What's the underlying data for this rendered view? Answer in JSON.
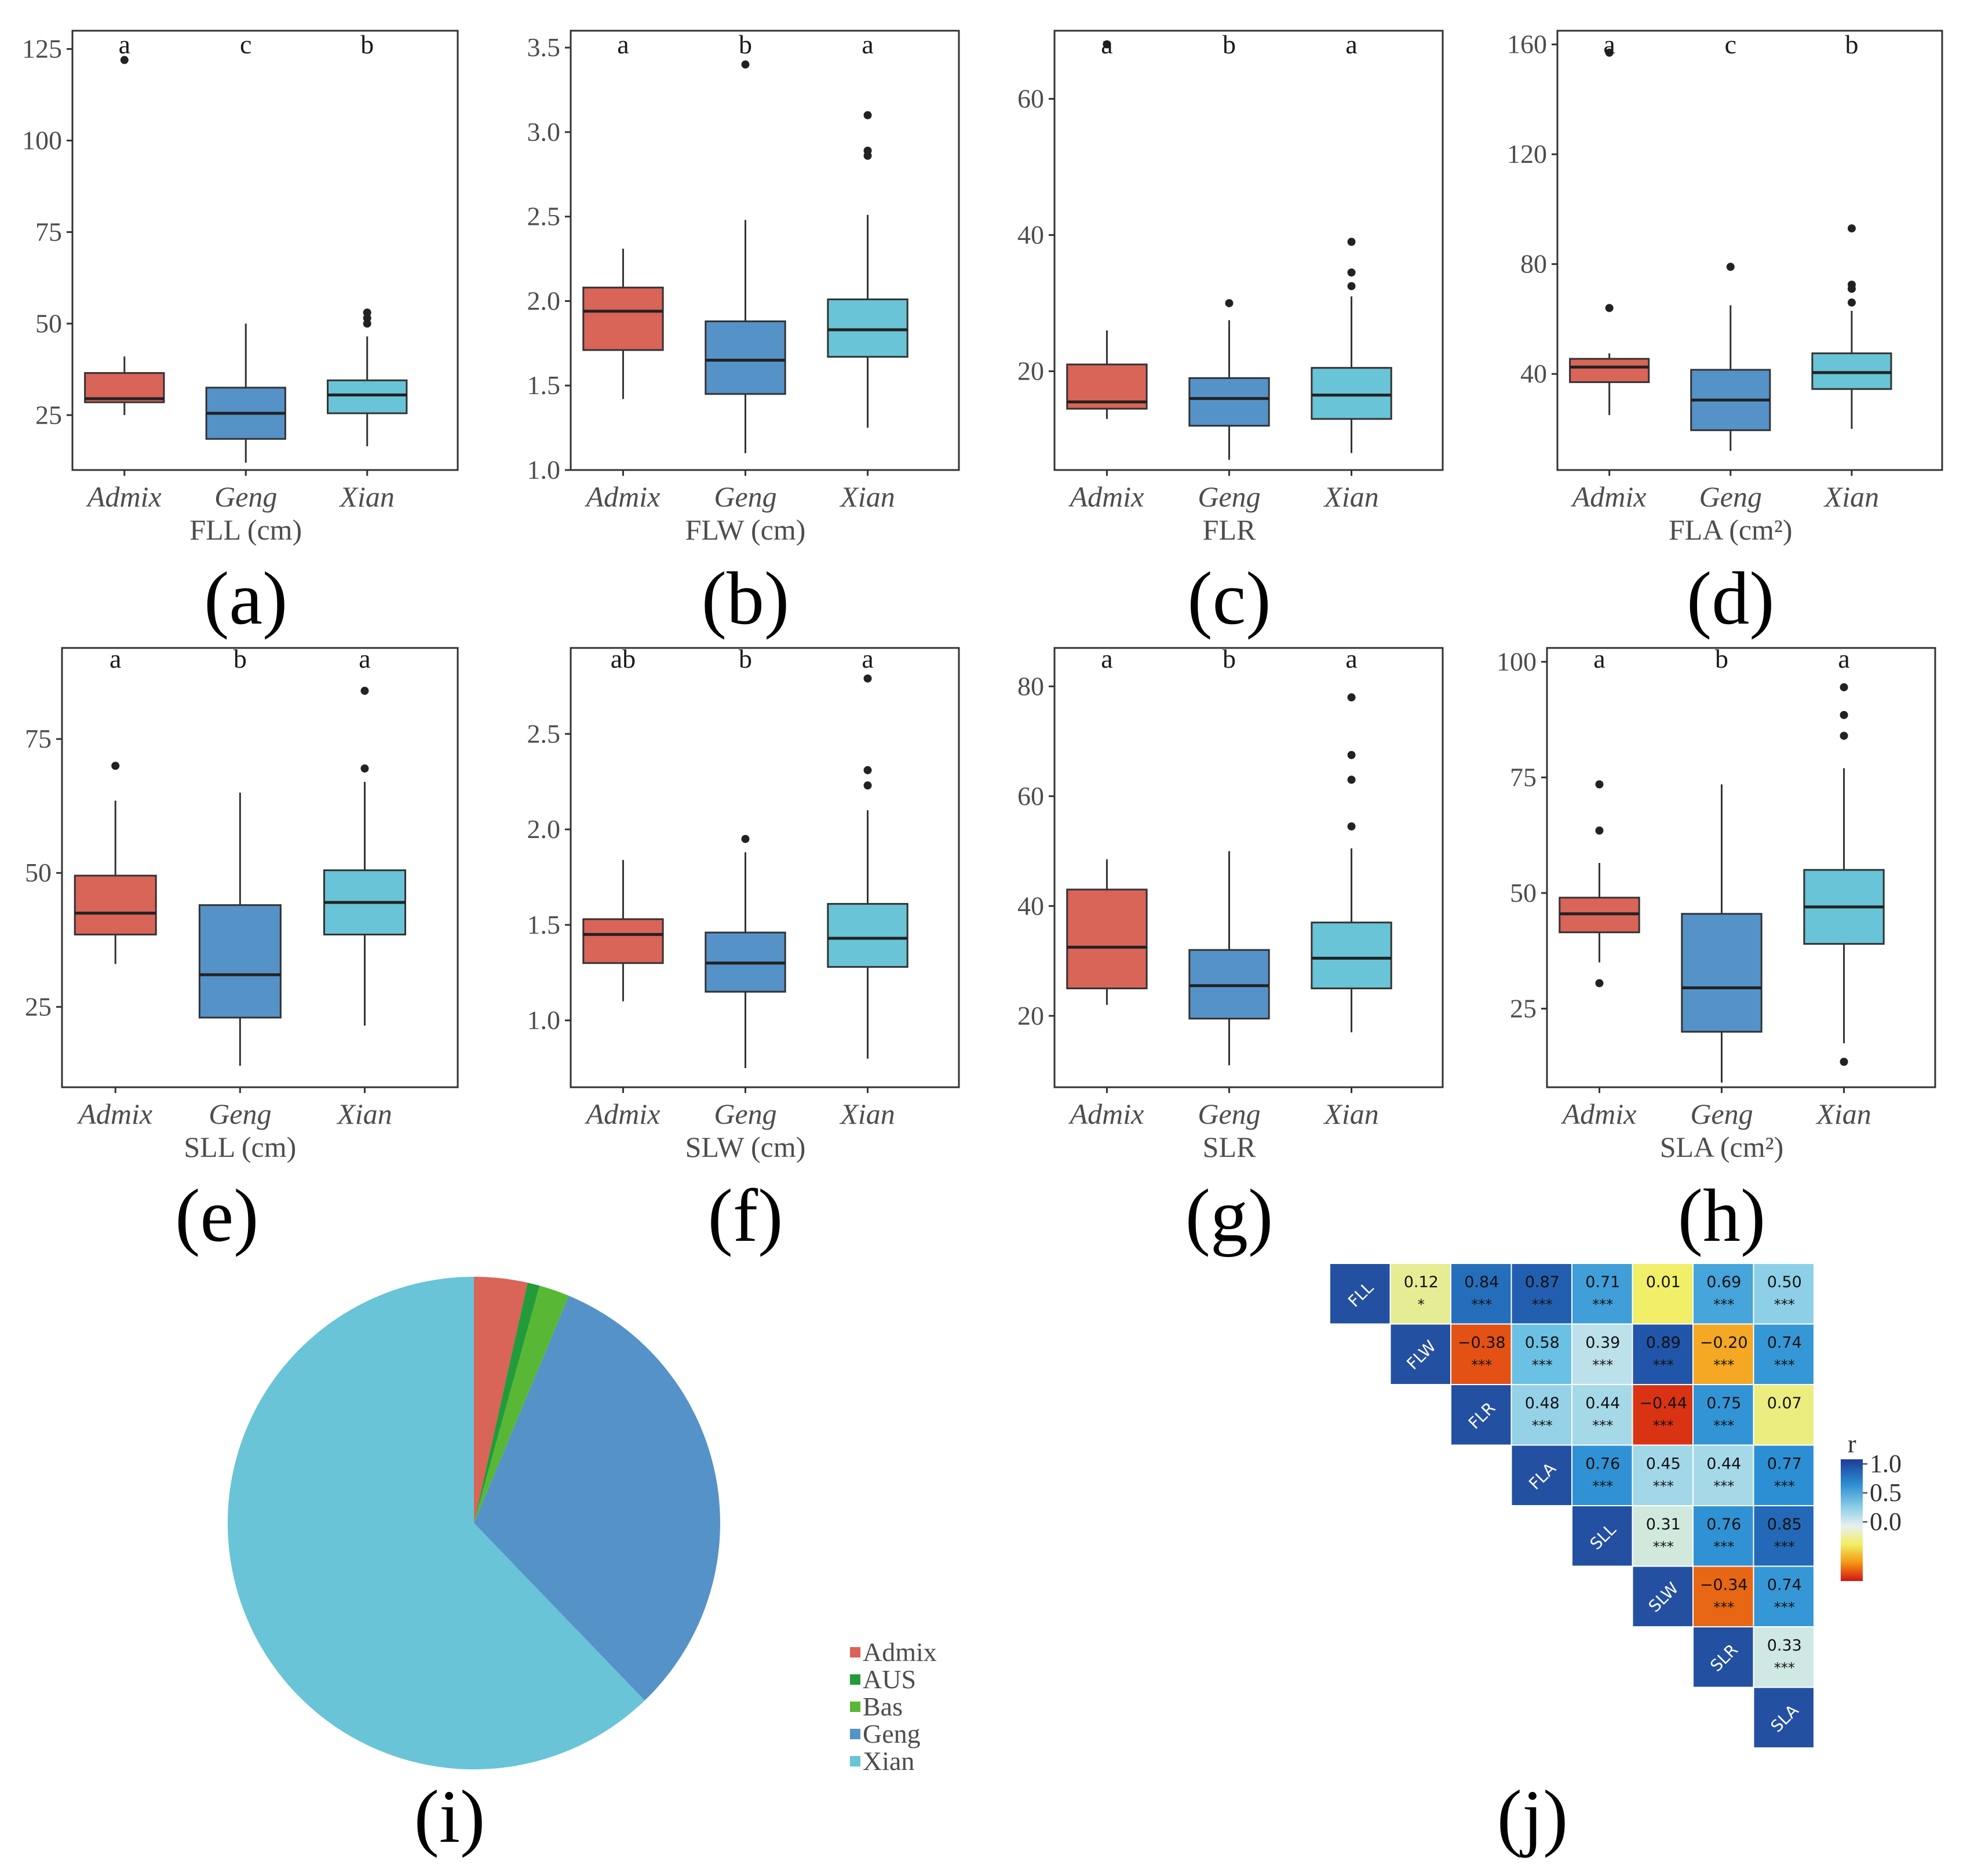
{
  "colors": {
    "Admix": "#d96458",
    "AUS": "#239b3a",
    "Bas": "#58b836",
    "Geng": "#5592c8",
    "Xian": "#68c4d6"
  },
  "chart_data": [
    {
      "type": "box",
      "panel": "(a)",
      "xlabel": "FLL (cm)",
      "categories": [
        "Admix",
        "Geng",
        "Xian"
      ],
      "yticks": [
        25,
        50,
        75,
        100,
        125
      ],
      "ylim": [
        10,
        130
      ],
      "letters": [
        "a",
        "c",
        "b"
      ],
      "boxes": [
        {
          "lo": 25,
          "q1": 28.5,
          "med": 29.5,
          "q3": 36.5,
          "hi": 41,
          "outliers": [
            122
          ]
        },
        {
          "lo": 12,
          "q1": 18.5,
          "med": 25.5,
          "q3": 32.5,
          "hi": 50,
          "outliers": []
        },
        {
          "lo": 16.5,
          "q1": 25.5,
          "med": 30.5,
          "q3": 34.5,
          "hi": 46.5,
          "outliers": [
            50,
            51.5,
            53
          ]
        }
      ]
    },
    {
      "type": "box",
      "panel": "(b)",
      "xlabel": "FLW (cm)",
      "categories": [
        "Admix",
        "Geng",
        "Xian"
      ],
      "yticks": [
        "1.0",
        "1.5",
        "2.0",
        "2.5",
        "3.0",
        "3.5"
      ],
      "ylim": [
        1.0,
        3.6
      ],
      "letters": [
        "a",
        "b",
        "a"
      ],
      "boxes": [
        {
          "lo": 1.42,
          "q1": 1.71,
          "med": 1.94,
          "q3": 2.08,
          "hi": 2.31,
          "outliers": []
        },
        {
          "lo": 1.1,
          "q1": 1.45,
          "med": 1.65,
          "q3": 1.88,
          "hi": 2.48,
          "outliers": [
            3.4
          ]
        },
        {
          "lo": 1.25,
          "q1": 1.67,
          "med": 1.83,
          "q3": 2.01,
          "hi": 2.51,
          "outliers": [
            2.86,
            2.89,
            3.1
          ]
        }
      ]
    },
    {
      "type": "box",
      "panel": "(c)",
      "xlabel": "FLR",
      "categories": [
        "Admix",
        "Geng",
        "Xian"
      ],
      "yticks": [
        20,
        40,
        60
      ],
      "ylim": [
        5.5,
        70
      ],
      "letters": [
        "a",
        "b",
        "a"
      ],
      "boxes": [
        {
          "lo": 13,
          "q1": 14.5,
          "med": 15.5,
          "q3": 21,
          "hi": 26,
          "outliers": [
            68
          ]
        },
        {
          "lo": 7,
          "q1": 12,
          "med": 16,
          "q3": 19,
          "hi": 27.5,
          "outliers": [
            30
          ]
        },
        {
          "lo": 8,
          "q1": 13,
          "med": 16.5,
          "q3": 20.5,
          "hi": 31,
          "outliers": [
            32.5,
            34.5,
            39
          ]
        }
      ]
    },
    {
      "type": "box",
      "panel": "(d)",
      "xlabel": "FLA (cm²)",
      "categories": [
        "Admix",
        "Geng",
        "Xian"
      ],
      "yticks": [
        40,
        80,
        120,
        160
      ],
      "ylim": [
        5,
        165
      ],
      "letters": [
        "a",
        "c",
        "b"
      ],
      "boxes": [
        {
          "lo": 25,
          "q1": 37,
          "med": 42.5,
          "q3": 45.5,
          "hi": 47.5,
          "outliers": [
            64,
            157
          ]
        },
        {
          "lo": 12,
          "q1": 19.5,
          "med": 30.5,
          "q3": 41.5,
          "hi": 65,
          "outliers": [
            79
          ]
        },
        {
          "lo": 20,
          "q1": 34.5,
          "med": 40.5,
          "q3": 47.5,
          "hi": 63,
          "outliers": [
            66,
            71,
            72.5,
            93
          ]
        }
      ]
    },
    {
      "type": "box",
      "panel": "(e)",
      "xlabel": "SLL (cm)",
      "categories": [
        "Admix",
        "Geng",
        "Xian"
      ],
      "yticks": [
        25,
        50,
        75
      ],
      "ylim": [
        10,
        92
      ],
      "letters": [
        "a",
        "b",
        "a"
      ],
      "boxes": [
        {
          "lo": 33,
          "q1": 38.5,
          "med": 42.5,
          "q3": 49.5,
          "hi": 63.5,
          "outliers": [
            70
          ]
        },
        {
          "lo": 14,
          "q1": 23,
          "med": 31,
          "q3": 44,
          "hi": 65,
          "outliers": []
        },
        {
          "lo": 21.5,
          "q1": 38.5,
          "med": 44.5,
          "q3": 50.5,
          "hi": 67,
          "outliers": [
            69.5,
            84
          ]
        }
      ]
    },
    {
      "type": "box",
      "panel": "(f)",
      "xlabel": "SLW (cm)",
      "categories": [
        "Admix",
        "Geng",
        "Xian"
      ],
      "yticks": [
        "1.0",
        "1.5",
        "2.0",
        "2.5"
      ],
      "ylim": [
        0.65,
        2.95
      ],
      "letters": [
        "ab",
        "b",
        "a"
      ],
      "boxes": [
        {
          "lo": 1.1,
          "q1": 1.3,
          "med": 1.45,
          "q3": 1.53,
          "hi": 1.84,
          "outliers": []
        },
        {
          "lo": 0.75,
          "q1": 1.15,
          "med": 1.3,
          "q3": 1.46,
          "hi": 1.88,
          "outliers": [
            1.95
          ]
        },
        {
          "lo": 0.8,
          "q1": 1.28,
          "med": 1.43,
          "q3": 1.61,
          "hi": 2.1,
          "outliers": [
            2.23,
            2.31,
            2.79
          ]
        }
      ]
    },
    {
      "type": "box",
      "panel": "(g)",
      "xlabel": "SLR",
      "categories": [
        "Admix",
        "Geng",
        "Xian"
      ],
      "yticks": [
        20,
        40,
        60,
        80
      ],
      "ylim": [
        7,
        87
      ],
      "letters": [
        "a",
        "b",
        "a"
      ],
      "boxes": [
        {
          "lo": 22,
          "q1": 25,
          "med": 32.5,
          "q3": 43,
          "hi": 48.5,
          "outliers": []
        },
        {
          "lo": 11,
          "q1": 19.5,
          "med": 25.5,
          "q3": 32,
          "hi": 50,
          "outliers": []
        },
        {
          "lo": 17,
          "q1": 25,
          "med": 30.5,
          "q3": 37,
          "hi": 50.5,
          "outliers": [
            54.5,
            63,
            67.5,
            78
          ]
        }
      ]
    },
    {
      "type": "box",
      "panel": "(h)",
      "xlabel": "SLA (cm²)",
      "categories": [
        "Admix",
        "Geng",
        "Xian"
      ],
      "yticks": [
        25,
        50,
        75,
        100
      ],
      "ylim": [
        8,
        103
      ],
      "letters": [
        "a",
        "b",
        "a"
      ],
      "boxes": [
        {
          "lo": 35,
          "q1": 41.5,
          "med": 45.5,
          "q3": 49,
          "hi": 56.5,
          "outliers": [
            30.5,
            63.5,
            73.5
          ]
        },
        {
          "lo": 9,
          "q1": 20,
          "med": 29.5,
          "q3": 45.5,
          "hi": 73.5,
          "outliers": []
        },
        {
          "lo": 17.5,
          "q1": 39,
          "med": 47,
          "q3": 55,
          "hi": 77,
          "outliers": [
            13.5,
            84,
            88.5,
            94.5
          ]
        }
      ]
    },
    {
      "type": "pie",
      "panel": "(i)",
      "labels": [
        "Admix",
        "AUS",
        "Bas",
        "Geng",
        "Xian"
      ],
      "values": [
        3.5,
        0.8,
        2.0,
        31.5,
        62.2
      ],
      "legend_position": "bottom-right"
    },
    {
      "type": "heatmap",
      "panel": "(j)",
      "variables": [
        "FLL",
        "FLW",
        "FLR",
        "FLA",
        "SLL",
        "SLW",
        "SLR",
        "SLA"
      ],
      "colorbar_label": "r",
      "colorbar_ticks": [
        "1.0",
        "0.5",
        "0.0"
      ],
      "rows": [
        {
          "r": [
            "0.12",
            "0.84",
            "0.87",
            "0.71",
            "0.01",
            "0.69",
            "0.50"
          ],
          "sig": [
            "*",
            "***",
            "***",
            "***",
            "",
            "***",
            "***"
          ]
        },
        {
          "r": [
            "−0.38",
            "0.58",
            "0.39",
            "0.89",
            "−0.20",
            "0.74"
          ],
          "sig": [
            "***",
            "***",
            "***",
            "***",
            "***",
            "***"
          ]
        },
        {
          "r": [
            "0.48",
            "0.44",
            "−0.44",
            "0.75",
            "0.07"
          ],
          "sig": [
            "***",
            "***",
            "***",
            "***",
            ""
          ]
        },
        {
          "r": [
            "0.76",
            "0.45",
            "0.44",
            "0.77"
          ],
          "sig": [
            "***",
            "***",
            "***",
            "***"
          ]
        },
        {
          "r": [
            "0.31",
            "0.76",
            "0.85"
          ],
          "sig": [
            "***",
            "***",
            "***"
          ]
        },
        {
          "r": [
            "−0.34",
            "0.74"
          ],
          "sig": [
            "***",
            "***"
          ]
        },
        {
          "r": [
            "0.33"
          ],
          "sig": [
            "***"
          ]
        }
      ]
    }
  ]
}
